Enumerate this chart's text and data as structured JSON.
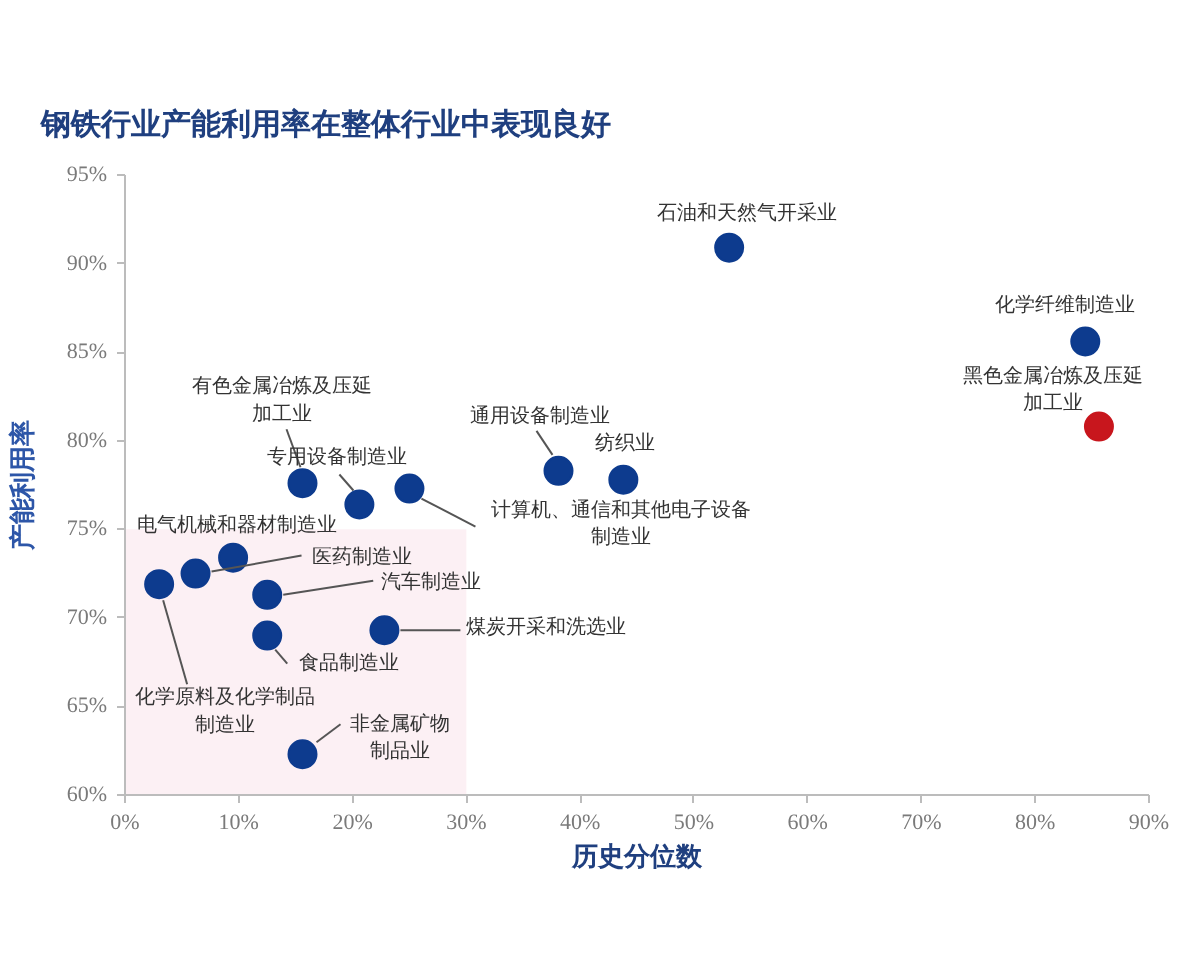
{
  "chart_data": {
    "type": "scatter",
    "title": "钢铁行业产能利用率在整体行业中表现良好",
    "xlabel": "历史分位数",
    "ylabel": "产能利用率",
    "xlim": [
      0,
      90
    ],
    "ylim": [
      60,
      95
    ],
    "xticks": [
      {
        "value": 0,
        "label": "0%"
      },
      {
        "value": 10,
        "label": "10%"
      },
      {
        "value": 20,
        "label": "20%"
      },
      {
        "value": 30,
        "label": "30%"
      },
      {
        "value": 40,
        "label": "40%"
      },
      {
        "value": 50,
        "label": "50%"
      },
      {
        "value": 60,
        "label": "60%"
      },
      {
        "value": 70,
        "label": "70%"
      },
      {
        "value": 80,
        "label": "80%"
      },
      {
        "value": 90,
        "label": "90%"
      }
    ],
    "yticks": [
      {
        "value": 60,
        "label": "60%"
      },
      {
        "value": 65,
        "label": "65%"
      },
      {
        "value": 70,
        "label": "70%"
      },
      {
        "value": 75,
        "label": "75%"
      },
      {
        "value": 80,
        "label": "80%"
      },
      {
        "value": 85,
        "label": "85%"
      },
      {
        "value": 90,
        "label": "90%"
      },
      {
        "value": 95,
        "label": "95%"
      }
    ],
    "grid": false,
    "marker": "circle",
    "series": [
      {
        "name": "石油和天然气开采业",
        "color": "#0d3b8e",
        "x": [
          53.1
        ],
        "values": [
          90.9
        ]
      },
      {
        "name": "化学纤维制造业",
        "color": "#0d3b8e",
        "x": [
          84.4
        ],
        "values": [
          85.6
        ]
      },
      {
        "name": "黑色金属冶炼及压延加工业",
        "color": "#c8161d",
        "x": [
          85.6
        ],
        "values": [
          80.8
        ]
      },
      {
        "name": "通用设备制造业",
        "color": "#0d3b8e",
        "x": [
          38.1
        ],
        "values": [
          78.3
        ]
      },
      {
        "name": "纺织业",
        "color": "#0d3b8e",
        "x": [
          43.8
        ],
        "values": [
          77.8
        ]
      },
      {
        "name": "有色金属冶炼及压延加工业",
        "color": "#0d3b8e",
        "x": [
          15.6
        ],
        "values": [
          77.6
        ]
      },
      {
        "name": "专用设备制造业",
        "color": "#0d3b8e",
        "x": [
          20.6
        ],
        "values": [
          76.4
        ]
      },
      {
        "name": "计算机、通信和其他电子设备制造业",
        "color": "#0d3b8e",
        "x": [
          25.0
        ],
        "values": [
          77.3
        ]
      },
      {
        "name": "电气机械和器材制造业",
        "color": "#0d3b8e",
        "x": [
          9.5
        ],
        "values": [
          73.4
        ]
      },
      {
        "name": "医药制造业",
        "color": "#0d3b8e",
        "x": [
          6.2
        ],
        "values": [
          72.5
        ]
      },
      {
        "name": "化学原料及化学制品制造业",
        "color": "#0d3b8e",
        "x": [
          3.0
        ],
        "values": [
          71.9
        ]
      },
      {
        "name": "汽车制造业",
        "color": "#0d3b8e",
        "x": [
          12.5
        ],
        "values": [
          71.3
        ]
      },
      {
        "name": "食品制造业",
        "color": "#0d3b8e",
        "x": [
          12.5
        ],
        "values": [
          69.0
        ]
      },
      {
        "name": "煤炭开采和洗选业",
        "color": "#0d3b8e",
        "x": [
          22.8
        ],
        "values": [
          69.3
        ]
      },
      {
        "name": "非金属矿物制品业",
        "color": "#0d3b8e",
        "x": [
          15.6
        ],
        "values": [
          62.3
        ]
      },
      {
        "type": "area",
        "marker": "none",
        "color": "#fcf0f4",
        "x": [
          0,
          30
        ],
        "values": [
          75,
          75
        ]
      }
    ]
  }
}
